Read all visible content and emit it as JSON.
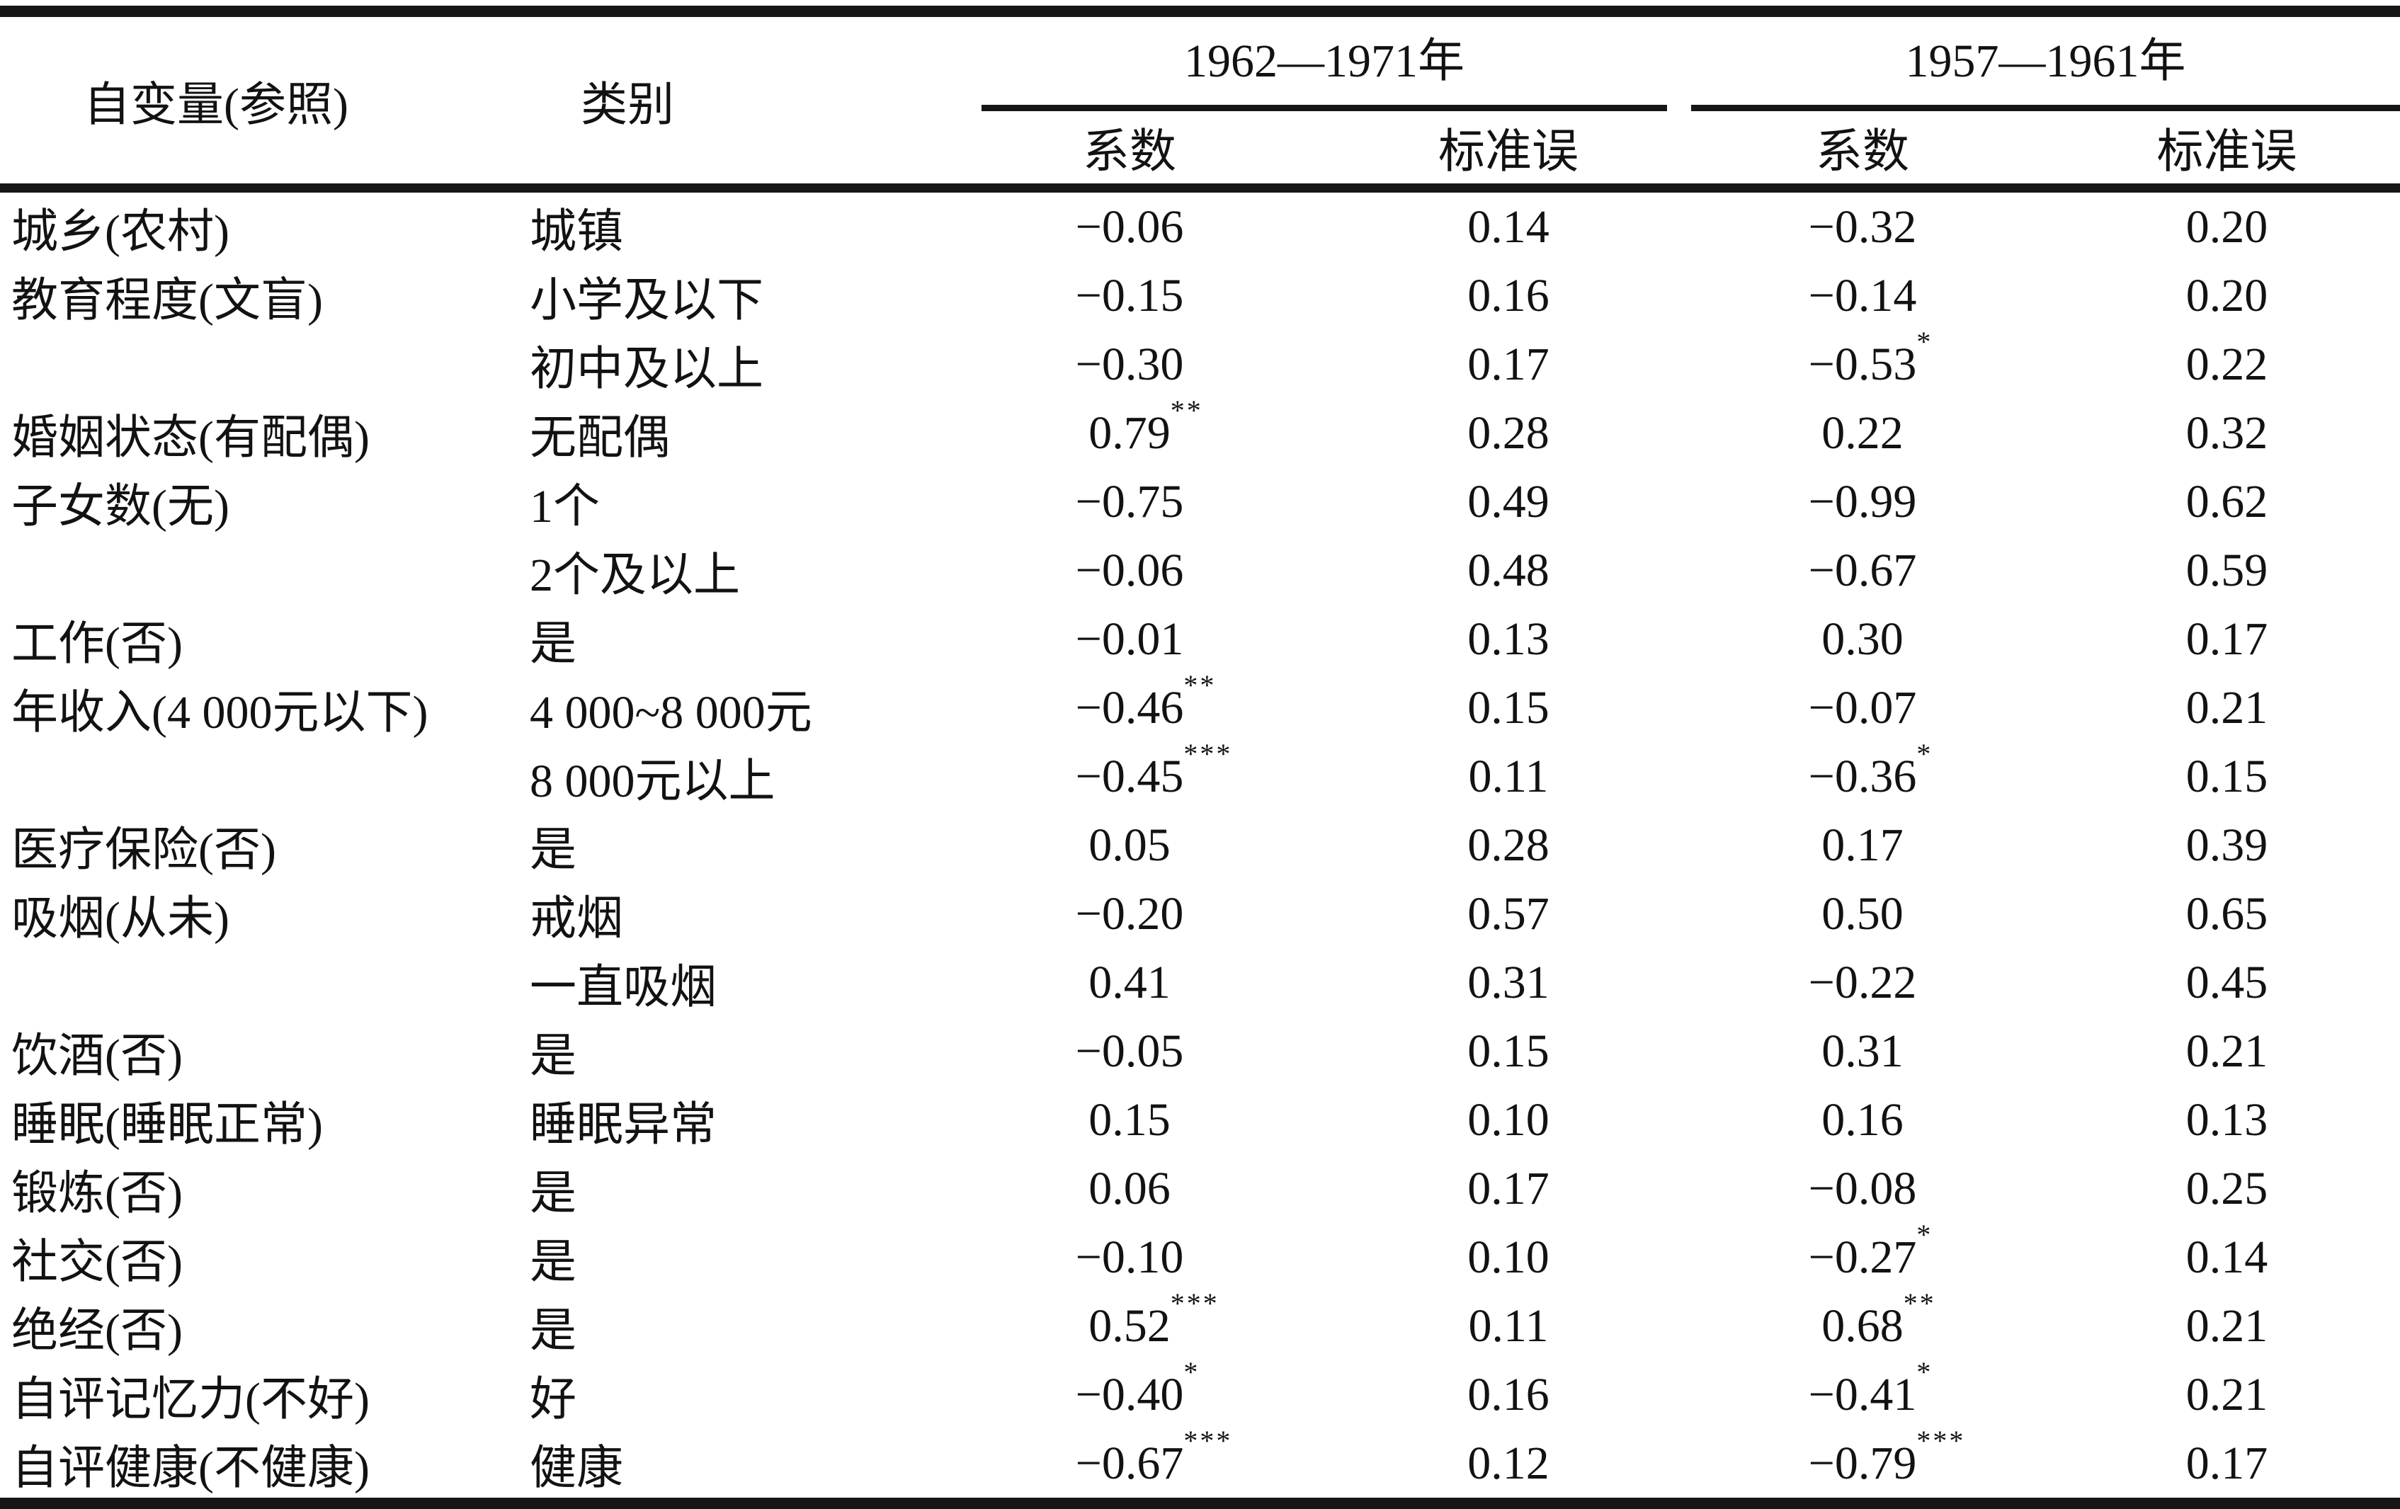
{
  "table": {
    "colors": {
      "text": "#121212",
      "rule": "#161616",
      "background": "#ffffff"
    },
    "headers": {
      "independent_variable": "自变量(参照)",
      "category": "类别",
      "period_1": "1962—1971年",
      "period_2": "1957—1961年",
      "coefficient": "系数",
      "standard_error": "标准误"
    },
    "rows": [
      {
        "var": "城乡(农村)",
        "cat": "城镇",
        "coef1": "−0.06",
        "sig1": "",
        "se1": "0.14",
        "coef2": "−0.32",
        "sig2": "",
        "se2": "0.20"
      },
      {
        "var": "教育程度(文盲)",
        "cat": "小学及以下",
        "coef1": "−0.15",
        "sig1": "",
        "se1": "0.16",
        "coef2": "−0.14",
        "sig2": "",
        "se2": "0.20"
      },
      {
        "var": "",
        "cat": "初中及以上",
        "coef1": "−0.30",
        "sig1": "",
        "se1": "0.17",
        "coef2": "−0.53",
        "sig2": "*",
        "se2": "0.22"
      },
      {
        "var": "婚姻状态(有配偶)",
        "cat": "无配偶",
        "coef1": "0.79",
        "sig1": "**",
        "se1": "0.28",
        "coef2": "0.22",
        "sig2": "",
        "se2": "0.32"
      },
      {
        "var": "子女数(无)",
        "cat": "1个",
        "coef1": "−0.75",
        "sig1": "",
        "se1": "0.49",
        "coef2": "−0.99",
        "sig2": "",
        "se2": "0.62"
      },
      {
        "var": "",
        "cat": "2个及以上",
        "coef1": "−0.06",
        "sig1": "",
        "se1": "0.48",
        "coef2": "−0.67",
        "sig2": "",
        "se2": "0.59"
      },
      {
        "var": "工作(否)",
        "cat": "是",
        "coef1": "−0.01",
        "sig1": "",
        "se1": "0.13",
        "coef2": "0.30",
        "sig2": "",
        "se2": "0.17"
      },
      {
        "var": "年收入(4 000元以下)",
        "cat": "4 000~8 000元",
        "coef1": "−0.46",
        "sig1": "**",
        "se1": "0.15",
        "coef2": "−0.07",
        "sig2": "",
        "se2": "0.21"
      },
      {
        "var": "",
        "cat": "8 000元以上",
        "coef1": "−0.45",
        "sig1": "***",
        "se1": "0.11",
        "coef2": "−0.36",
        "sig2": "*",
        "se2": "0.15"
      },
      {
        "var": "医疗保险(否)",
        "cat": "是",
        "coef1": "0.05",
        "sig1": "",
        "se1": "0.28",
        "coef2": "0.17",
        "sig2": "",
        "se2": "0.39"
      },
      {
        "var": "吸烟(从未)",
        "cat": "戒烟",
        "coef1": "−0.20",
        "sig1": "",
        "se1": "0.57",
        "coef2": "0.50",
        "sig2": "",
        "se2": "0.65"
      },
      {
        "var": "",
        "cat": "一直吸烟",
        "coef1": "0.41",
        "sig1": "",
        "se1": "0.31",
        "coef2": "−0.22",
        "sig2": "",
        "se2": "0.45"
      },
      {
        "var": "饮酒(否)",
        "cat": "是",
        "coef1": "−0.05",
        "sig1": "",
        "se1": "0.15",
        "coef2": "0.31",
        "sig2": "",
        "se2": "0.21"
      },
      {
        "var": "睡眠(睡眠正常)",
        "cat": "睡眠异常",
        "coef1": "0.15",
        "sig1": "",
        "se1": "0.10",
        "coef2": "0.16",
        "sig2": "",
        "se2": "0.13"
      },
      {
        "var": "锻炼(否)",
        "cat": "是",
        "coef1": "0.06",
        "sig1": "",
        "se1": "0.17",
        "coef2": "−0.08",
        "sig2": "",
        "se2": "0.25"
      },
      {
        "var": "社交(否)",
        "cat": "是",
        "coef1": "−0.10",
        "sig1": "",
        "se1": "0.10",
        "coef2": "−0.27",
        "sig2": "*",
        "se2": "0.14"
      },
      {
        "var": "绝经(否)",
        "cat": "是",
        "coef1": "0.52",
        "sig1": "***",
        "se1": "0.11",
        "coef2": "0.68",
        "sig2": "**",
        "se2": "0.21"
      },
      {
        "var": "自评记忆力(不好)",
        "cat": "好",
        "coef1": "−0.40",
        "sig1": "*",
        "se1": "0.16",
        "coef2": "−0.41",
        "sig2": "*",
        "se2": "0.21"
      },
      {
        "var": "自评健康(不健康)",
        "cat": "健康",
        "coef1": "−0.67",
        "sig1": "***",
        "se1": "0.12",
        "coef2": "−0.79",
        "sig2": "***",
        "se2": "0.17"
      }
    ]
  }
}
